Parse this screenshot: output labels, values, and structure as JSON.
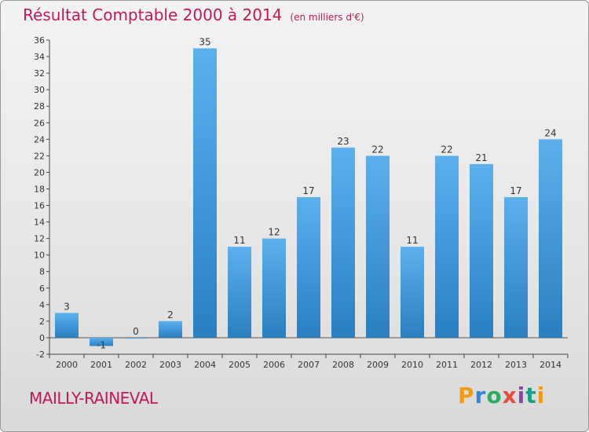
{
  "header": {
    "title": "Résultat Comptable 2000 à 2014",
    "subtitle": "(en milliers d'€)"
  },
  "footer": {
    "town": "MAILLY-RAINEVAL",
    "logo_text": "Proxiti"
  },
  "chart_data": {
    "type": "bar",
    "title": "Résultat Comptable 2000 à 2014",
    "subtitle": "(en milliers d'€)",
    "categories": [
      "2000",
      "2001",
      "2002",
      "2003",
      "2004",
      "2005",
      "2006",
      "2007",
      "2008",
      "2009",
      "2010",
      "2011",
      "2012",
      "2013",
      "2014"
    ],
    "values": [
      3,
      -1,
      0,
      2,
      35,
      11,
      12,
      17,
      23,
      22,
      11,
      22,
      21,
      17,
      24
    ],
    "data_labels": [
      "3",
      "-1",
      "0",
      "2",
      "35",
      "11",
      "12",
      "17",
      "23",
      "22",
      "11",
      "22",
      "21",
      "17",
      "24"
    ],
    "ylim": [
      -2,
      36
    ],
    "yticks": [
      -2,
      0,
      2,
      4,
      6,
      8,
      10,
      12,
      14,
      16,
      18,
      20,
      22,
      24,
      26,
      28,
      30,
      32,
      34,
      36
    ],
    "grid": false,
    "bar_color": "#4aa3e6",
    "bar_color_dark": "#2a7fc0"
  }
}
